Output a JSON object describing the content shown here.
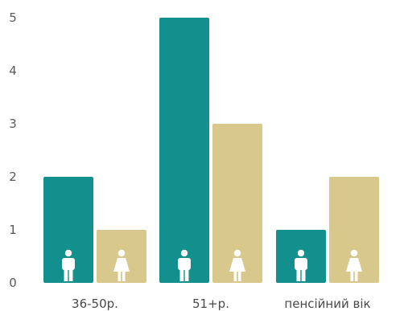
{
  "chart_data": {
    "type": "bar",
    "categories": [
      "36-50р.",
      "51+р.",
      "пенсійний вік"
    ],
    "series": [
      {
        "values": [
          2,
          5,
          1
        ],
        "color": "#13908e",
        "icon": "male-figure-icon"
      },
      {
        "values": [
          1,
          3,
          2
        ],
        "color": "#d8c88c",
        "icon": "female-figure-icon"
      }
    ],
    "y_ticks": [
      "0",
      "1",
      "2",
      "3",
      "4",
      "5"
    ],
    "ylim": [
      0,
      5
    ],
    "grid": false,
    "legend": "none"
  }
}
